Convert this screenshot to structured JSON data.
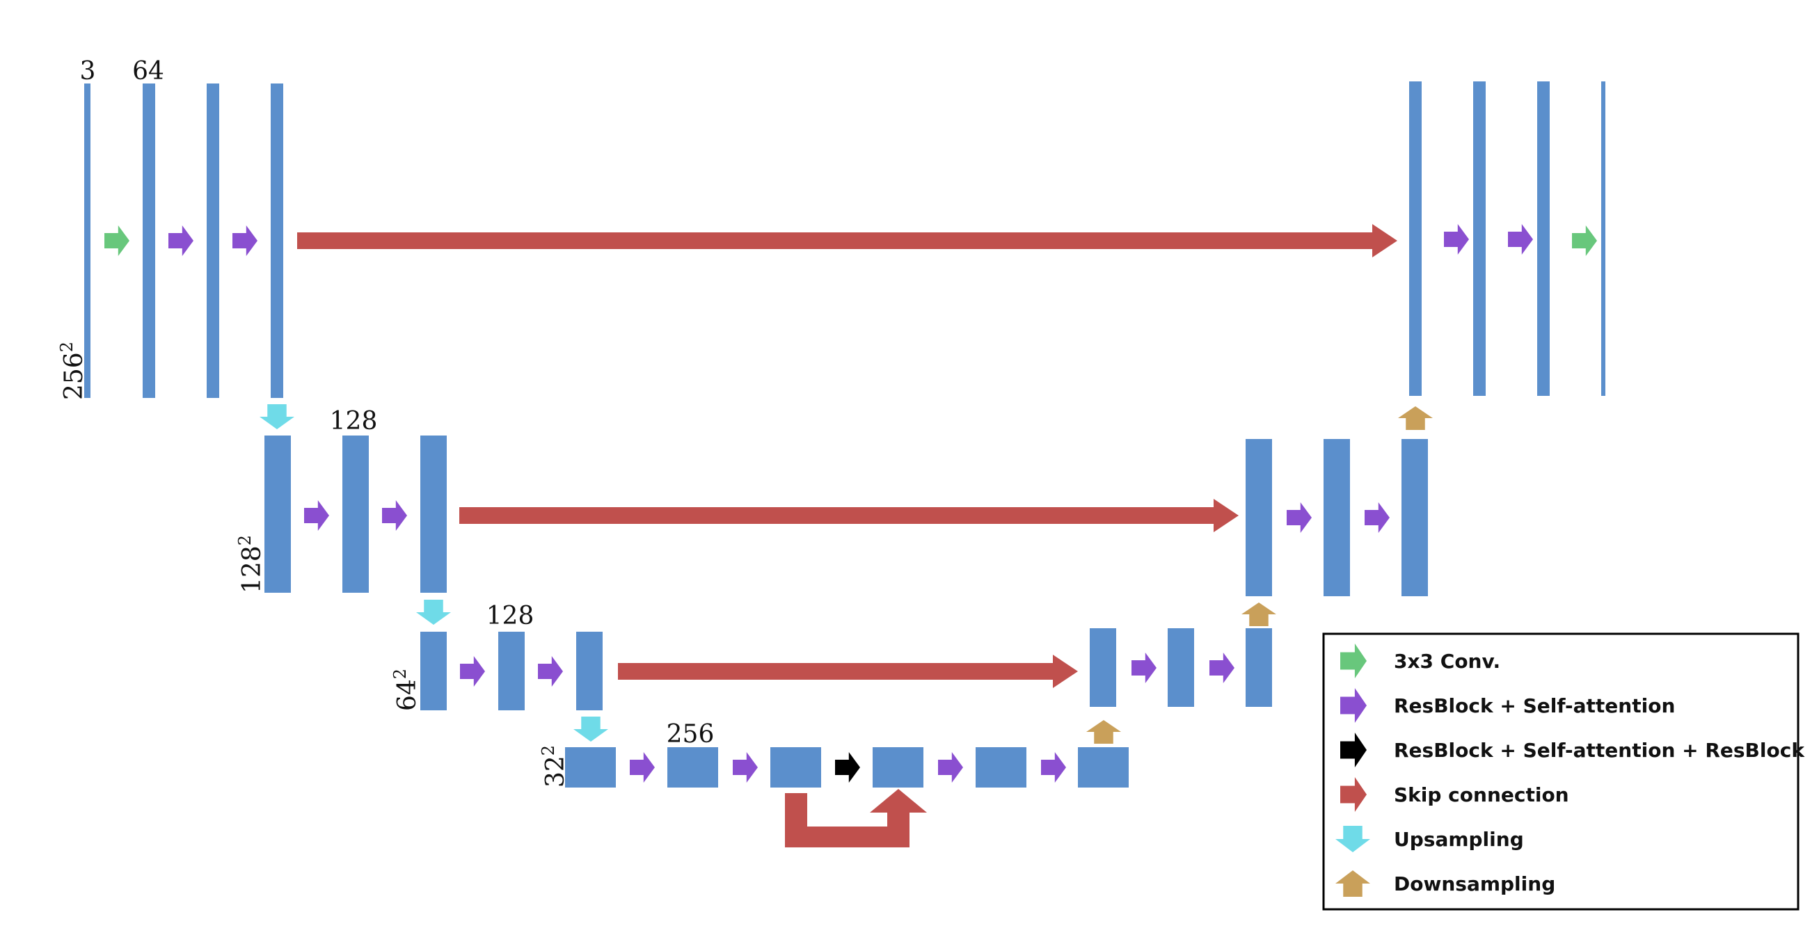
{
  "colors": {
    "block": "#5b8fcc",
    "conv": "#68c77c",
    "resblock_attention": "#8a4fd0",
    "resblock_attention_resblock": "#000000",
    "skip": "#c0504d",
    "upsampling": "#6fdbe8",
    "downsampling": "#c9a05a",
    "text": "#111111",
    "legend_border": "#000000"
  },
  "labels": {
    "channels_in": "3",
    "channels_64": "64",
    "size_256": "256",
    "channels_128_a": "128",
    "size_128": "128",
    "channels_128_b": "128",
    "size_64": "64",
    "channels_256": "256",
    "size_32": "32",
    "exponent": "2"
  },
  "legend": {
    "items": [
      {
        "label": "3x3 Conv.",
        "icon": "arrow-right-icon",
        "color": "#68c77c"
      },
      {
        "label": "ResBlock + Self-attention",
        "icon": "arrow-right-icon",
        "color": "#8a4fd0"
      },
      {
        "label": "ResBlock + Self-attention + ResBlock",
        "icon": "arrow-right-icon",
        "color": "#000000"
      },
      {
        "label": "Skip connection",
        "icon": "arrow-right-icon",
        "color": "#c0504d"
      },
      {
        "label": "Upsampling",
        "icon": "arrow-down-icon",
        "color": "#6fdbe8"
      },
      {
        "label": "Downsampling",
        "icon": "arrow-up-icon",
        "color": "#c9a05a"
      }
    ]
  }
}
